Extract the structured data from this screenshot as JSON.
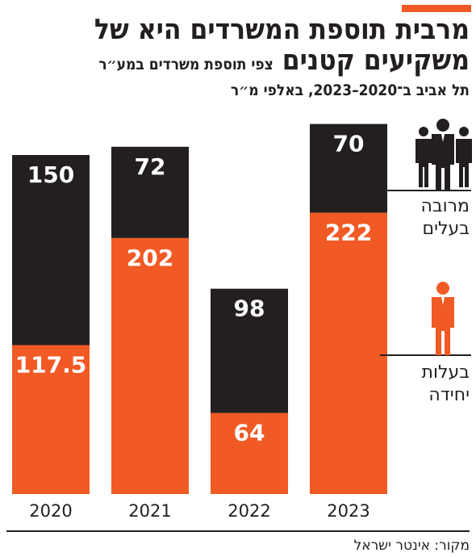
{
  "header": {
    "title_line1": "מרבית תוספת המשרדים היא של",
    "title_line2": "משקיעים קטנים",
    "subtitle_part1": "צפי תוספת משרדים במע״ר",
    "subtitle_part2": "תל אביב ב־2020–2023, באלפי מ״ר"
  },
  "legend": {
    "owners_line1": "מרובה",
    "owners_line2": "בעלים",
    "single_line1": "בעלות",
    "single_line2": "יחידה",
    "owners_icon": "group-of-people-icon",
    "single_icon": "single-person-icon"
  },
  "source": "מקור: אינטר ישראל",
  "colors": {
    "single": "#f15a24",
    "multiple": "#231f20",
    "accent": "#f15a24"
  },
  "chart_data": {
    "type": "bar",
    "stacked": true,
    "categories": [
      "2020",
      "2021",
      "2022",
      "2023"
    ],
    "series": [
      {
        "name": "בעלות יחידה",
        "values": [
          117.5,
          202,
          64,
          222
        ],
        "labels": [
          "117.5",
          "202",
          "64",
          "222"
        ]
      },
      {
        "name": "מרובה בעלים",
        "values": [
          150,
          72,
          98,
          70
        ],
        "labels": [
          "150",
          "72",
          "98",
          "70"
        ]
      }
    ],
    "title": "מרבית תוספת המשרדים היא של משקיעים קטנים",
    "subtitle": "צפי תוספת משרדים במע״ר תל אביב ב־2020–2023, באלפי מ״ר",
    "xlabel": "",
    "ylabel": "",
    "grid": false,
    "legend_position": "right"
  }
}
